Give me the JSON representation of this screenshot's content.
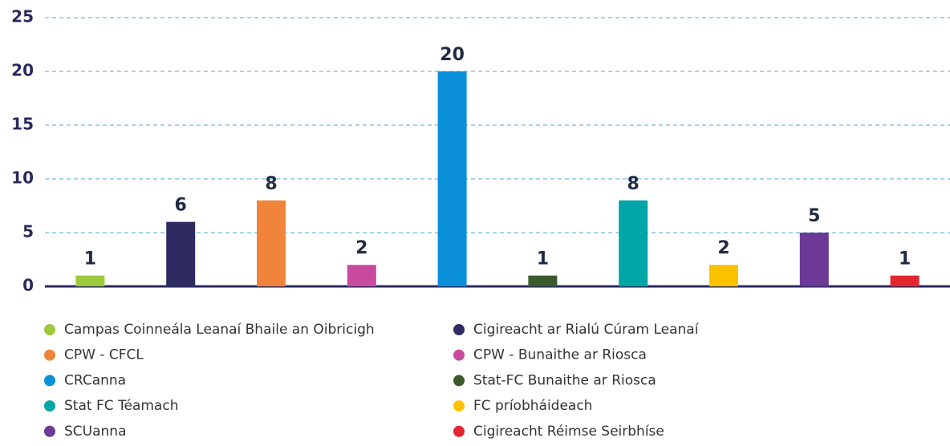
{
  "chart_data": {
    "type": "bar",
    "categories": [
      "Campas Coinneála Leanaí Bhaile an Oibricigh",
      "Cigireacht ar Rialú Cúram Leanaí",
      "CPW - CFCL",
      "CPW - Bunaithe ar Riosca",
      "CRCanna",
      "Stat-FC Bunaithe ar Riosca",
      "Stat FC Téamach",
      "FC príobháideach",
      "SCUanna",
      "Cigireacht Réimse Seirbhíse"
    ],
    "values": [
      1,
      6,
      8,
      2,
      20,
      1,
      8,
      2,
      5,
      1
    ],
    "colors": [
      "#9cc83c",
      "#2e2a62",
      "#f0843a",
      "#c84b9e",
      "#0a8fd8",
      "#3a5a2c",
      "#00a6a6",
      "#fbc200",
      "#6c3a96",
      "#e3262d"
    ],
    "ylim": [
      0,
      25
    ],
    "yticks": [
      0,
      5,
      10,
      15,
      20,
      25
    ],
    "grid": true
  }
}
